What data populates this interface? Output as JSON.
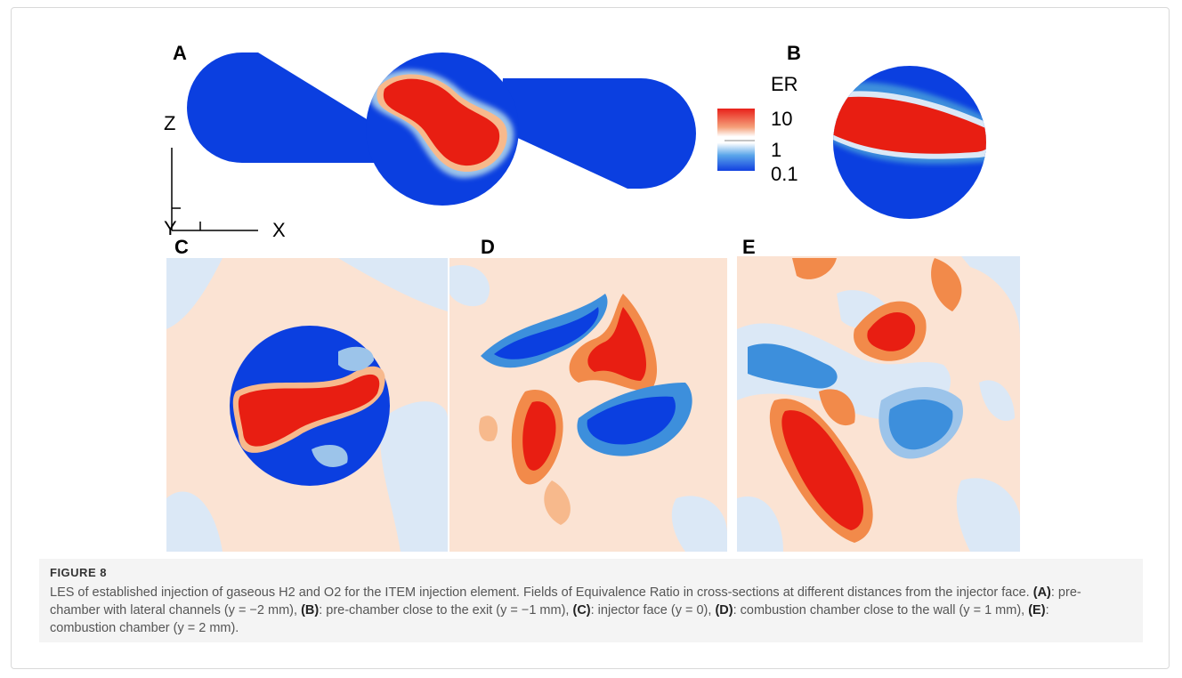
{
  "figure": {
    "panels": [
      {
        "letter": "A",
        "name": "panel-a"
      },
      {
        "letter": "B",
        "name": "panel-b"
      },
      {
        "letter": "C",
        "name": "panel-c"
      },
      {
        "letter": "D",
        "name": "panel-d"
      },
      {
        "letter": "E",
        "name": "panel-e"
      }
    ],
    "axes": {
      "z": "Z",
      "x": "X",
      "y": "Y"
    },
    "colorbar": {
      "title": "ER",
      "ticks": [
        "10",
        "1",
        "0.1"
      ],
      "colors": {
        "high": "#e8211a",
        "mid": "#ffffff",
        "low": "#1240e0"
      }
    },
    "field_colors": {
      "deep_red": "#e81e12",
      "red": "#f04a23",
      "orange": "#f28a4a",
      "light_orange": "#f7b98c",
      "pale_orange": "#fbe3d3",
      "pale_blue": "#dbe8f6",
      "light_blue": "#9cc4ea",
      "blue": "#3d8fdc",
      "deep_blue": "#0b3fe0"
    }
  },
  "caption": {
    "label": "FIGURE 8",
    "intro": "LES of established injection of gaseous H2 and O2 for the ITEM injection element. Fields of Equivalence Ratio in cross-sections at different distances from the injector face.",
    "items": [
      {
        "tag": "(A)",
        "text": ": pre-chamber with lateral channels (y = −2 mm),"
      },
      {
        "tag": "(B)",
        "text": ": pre-chamber close to the exit (y = −1 mm),"
      },
      {
        "tag": "(C)",
        "text": ": injector face (y = 0),"
      },
      {
        "tag": "(D)",
        "text": ": combustion chamber close to the wall (y = 1 mm),"
      },
      {
        "tag": "(E)",
        "text": ": combustion chamber (y = 2 mm)."
      }
    ]
  }
}
